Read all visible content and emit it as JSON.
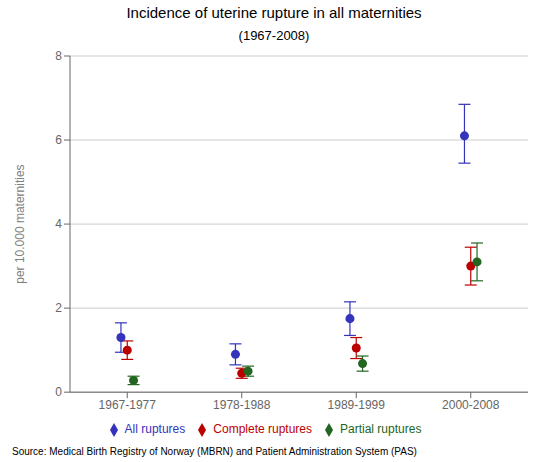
{
  "chart_data": {
    "type": "scatter",
    "title": "Incidence of uterine rupture in all maternities",
    "subtitle": "(1967-2008)",
    "ylabel": "per 10.000 maternities",
    "annotations": [
      "Source: Medical Birth Registry of Norway (MBRN) and Patient Administration System (PAS)"
    ],
    "categories": [
      "1967-1977",
      "1978-1988",
      "1989-1999",
      "2000-2008"
    ],
    "ylim": [
      0,
      8
    ],
    "yticks": [
      0,
      2,
      4,
      6,
      8
    ],
    "grid": true,
    "legend": "bottom",
    "marker": "circle",
    "series": [
      {
        "name": "All ruptures",
        "color": "#3333bb",
        "values": [
          1.3,
          0.9,
          1.75,
          6.1
        ],
        "yerr_low": [
          0.35,
          0.25,
          0.4,
          0.65
        ],
        "yerr_high": [
          0.35,
          0.25,
          0.4,
          0.75
        ]
      },
      {
        "name": "Complete ruptures",
        "color": "#bb0000",
        "values": [
          1.0,
          0.45,
          1.05,
          3.0
        ],
        "yerr_low": [
          0.22,
          0.12,
          0.25,
          0.45
        ],
        "yerr_high": [
          0.22,
          0.12,
          0.25,
          0.45
        ]
      },
      {
        "name": "Partial ruptures",
        "color": "#226622",
        "values": [
          0.28,
          0.5,
          0.68,
          3.1
        ],
        "yerr_low": [
          0.1,
          0.12,
          0.18,
          0.45
        ],
        "yerr_high": [
          0.1,
          0.12,
          0.18,
          0.45
        ]
      }
    ]
  }
}
